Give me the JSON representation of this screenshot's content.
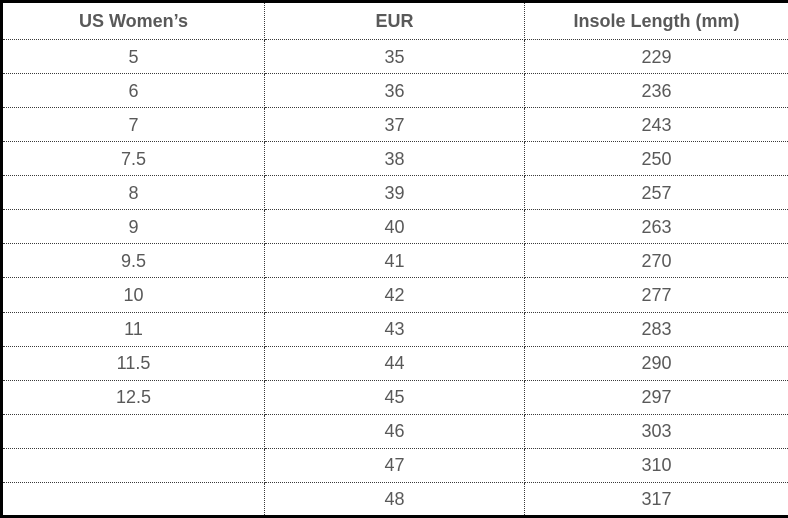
{
  "table": {
    "columns": [
      "US Women’s",
      "EUR",
      "Insole Length (mm)"
    ],
    "rows": [
      [
        "5",
        "35",
        "229"
      ],
      [
        "6",
        "36",
        "236"
      ],
      [
        "7",
        "37",
        "243"
      ],
      [
        "7.5",
        "38",
        "250"
      ],
      [
        "8",
        "39",
        "257"
      ],
      [
        "9",
        "40",
        "263"
      ],
      [
        "9.5",
        "41",
        "270"
      ],
      [
        "10",
        "42",
        "277"
      ],
      [
        "11",
        "43",
        "283"
      ],
      [
        "11.5",
        "44",
        "290"
      ],
      [
        "12.5",
        "45",
        "297"
      ],
      [
        "",
        "46",
        "303"
      ],
      [
        "",
        "47",
        "310"
      ],
      [
        "",
        "48",
        "317"
      ]
    ]
  },
  "chart_data": {
    "type": "table",
    "title": "",
    "columns": [
      "US Women’s",
      "EUR",
      "Insole Length (mm)"
    ],
    "rows": [
      [
        "5",
        "35",
        "229"
      ],
      [
        "6",
        "36",
        "236"
      ],
      [
        "7",
        "37",
        "243"
      ],
      [
        "7.5",
        "38",
        "250"
      ],
      [
        "8",
        "39",
        "257"
      ],
      [
        "9",
        "40",
        "263"
      ],
      [
        "9.5",
        "41",
        "270"
      ],
      [
        "10",
        "42",
        "277"
      ],
      [
        "11",
        "43",
        "283"
      ],
      [
        "11.5",
        "44",
        "290"
      ],
      [
        "12.5",
        "45",
        "297"
      ],
      [
        "",
        "46",
        "303"
      ],
      [
        "",
        "47",
        "310"
      ],
      [
        "",
        "48",
        "317"
      ]
    ],
    "series": [
      {
        "name": "US Women’s",
        "values": [
          5,
          6,
          7,
          7.5,
          8,
          9,
          9.5,
          10,
          11,
          11.5,
          12.5,
          null,
          null,
          null
        ]
      },
      {
        "name": "EUR",
        "values": [
          35,
          36,
          37,
          38,
          39,
          40,
          41,
          42,
          43,
          44,
          45,
          46,
          47,
          48
        ]
      },
      {
        "name": "Insole Length (mm)",
        "values": [
          229,
          236,
          243,
          250,
          257,
          263,
          270,
          277,
          283,
          290,
          297,
          303,
          310,
          317
        ]
      }
    ],
    "legend_position": "none",
    "grid": "dotted"
  },
  "colors": {
    "background": "#ffffff",
    "text": "#595959",
    "outer_border": "#000000",
    "inner_border": "#3a3a3a"
  }
}
